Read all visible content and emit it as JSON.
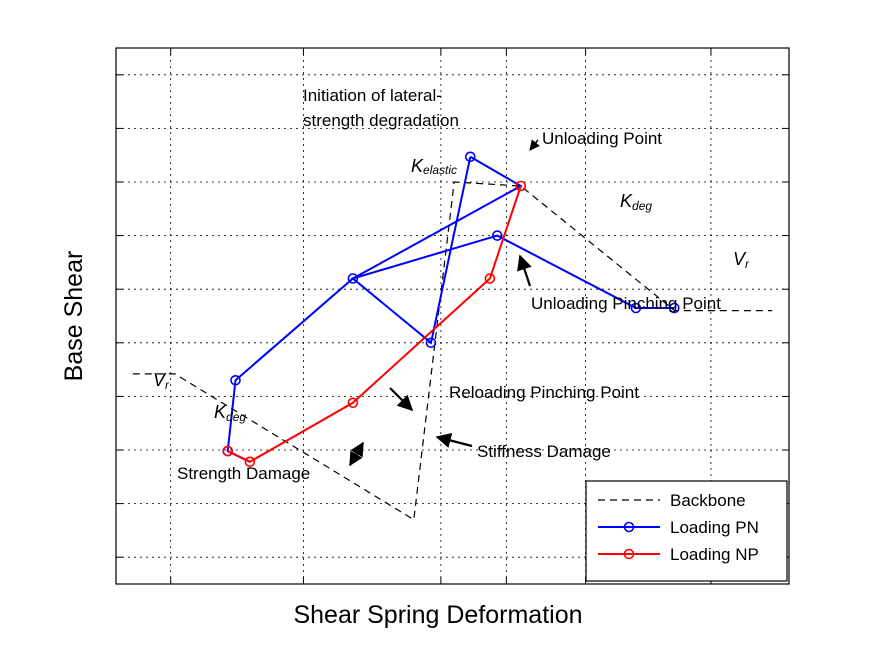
{
  "chart_data": {
    "type": "line",
    "xlabel": "Shear Spring Deformation",
    "ylabel": "Base Shear",
    "xlim": [
      0,
      10
    ],
    "ylim": [
      0,
      10
    ],
    "grid": true,
    "x_ticks": [
      0.8125,
      2.785,
      4.8275,
      5.8,
      6.9775,
      8.84
    ],
    "y_ticks": [
      0.5,
      1.5,
      2.5,
      3.5,
      4.5,
      5.5,
      6.5,
      7.5,
      8.5,
      9.5
    ],
    "legend_position": "bottom-right",
    "series": [
      {
        "name": "Backbone",
        "style": "dashed",
        "color": "#000000",
        "points": [
          [
            0.25,
            3.92
          ],
          [
            0.875,
            3.92
          ],
          [
            4.425,
            1.2
          ],
          [
            5.025,
            7.5
          ],
          [
            6.015,
            7.425
          ],
          [
            8.3,
            5.1
          ],
          [
            8.3,
            5.1
          ],
          [
            9.75,
            5.1
          ]
        ]
      },
      {
        "name": "Loading PN",
        "style": "solid",
        "color": "#0000ff",
        "marker": "circle",
        "points": [
          [
            5.265,
            7.97
          ],
          [
            4.68,
            4.5
          ],
          [
            3.52,
            5.7
          ],
          [
            5.665,
            6.5
          ],
          [
            7.725,
            5.15
          ],
          [
            8.295,
            5.15
          ]
        ],
        "branch": [
          [
            5.265,
            7.97
          ],
          [
            6.015,
            7.425
          ],
          [
            3.52,
            5.7
          ],
          [
            1.775,
            3.8
          ],
          [
            1.66,
            2.48
          ],
          [
            1.99,
            2.28
          ]
        ]
      },
      {
        "name": "Loading NP",
        "style": "solid",
        "color": "#ff0000",
        "marker": "circle",
        "points": [
          [
            6.015,
            7.425
          ],
          [
            5.555,
            5.7
          ],
          [
            3.52,
            3.38
          ],
          [
            1.99,
            2.28
          ],
          [
            1.66,
            2.48
          ]
        ]
      }
    ],
    "annotations": [
      {
        "text": "Initiation of lateral-",
        "line": 1
      },
      {
        "text": "strength  degradation",
        "line": 2
      },
      {
        "text": "Unloading Point"
      },
      {
        "text": "Unloading Pinching Point"
      },
      {
        "text": "Reloading Pinching Point"
      },
      {
        "text": "Stiffness Damage"
      },
      {
        "text": "Strength Damage"
      },
      {
        "symbol": "K",
        "sub": "elastic"
      },
      {
        "symbol": "K",
        "sub": "deg",
        "where": "upper"
      },
      {
        "symbol": "K",
        "sub": "deg",
        "where": "lower"
      },
      {
        "symbol": "V",
        "sub": "r",
        "where": "upper"
      },
      {
        "symbol": "V",
        "sub": "r",
        "where": "lower"
      }
    ]
  }
}
